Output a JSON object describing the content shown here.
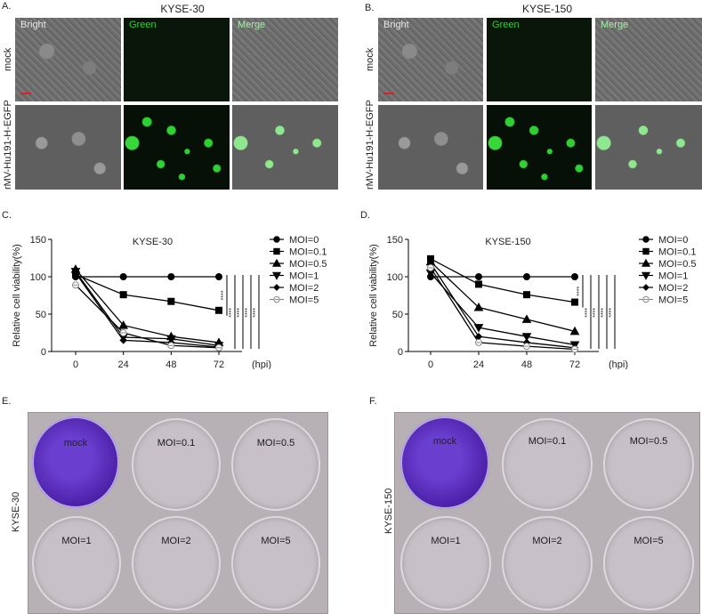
{
  "panels": {
    "A": {
      "letter": "A.",
      "title": "KYSE-30"
    },
    "B": {
      "letter": "B.",
      "title": "KYSE-150"
    },
    "C": {
      "letter": "C."
    },
    "D": {
      "letter": "D."
    },
    "E": {
      "letter": "E.",
      "side_label": "KYSE-30"
    },
    "F": {
      "letter": "F.",
      "side_label": "KYSE-150"
    }
  },
  "micrograph": {
    "columns": [
      "Bright",
      "Green",
      "Merge"
    ],
    "rows": [
      "mock",
      "rMV-Hu191-H-EGFP"
    ],
    "label_colors": {
      "Bright": "#e8e8e8",
      "Green": "#2fcf32",
      "Merge": "#a8f0a8"
    },
    "scalebar_color": "#e02020"
  },
  "plate": {
    "wells": [
      "mock",
      "MOI=0.1",
      "MOI=0.5",
      "MOI=1",
      "MOI=2",
      "MOI=5"
    ],
    "stain_color": "#4b1fa6"
  },
  "chart_data": [
    {
      "type": "line",
      "title": "KYSE-30",
      "xlabel": "(hpi)",
      "ylabel": "Relative cell viability(%)",
      "x": [
        0,
        24,
        48,
        72
      ],
      "x_ticks": [
        "0",
        "24",
        "48",
        "72"
      ],
      "y_ticks": [
        "0",
        "50",
        "100",
        "150"
      ],
      "ylim": [
        0,
        150
      ],
      "grid": false,
      "legend_position": "right",
      "series": [
        {
          "name": "MOI=0",
          "marker": "circle",
          "values": [
            100,
            100,
            100,
            100
          ]
        },
        {
          "name": "MOI=0.1",
          "marker": "square",
          "values": [
            103,
            76,
            67,
            55
          ]
        },
        {
          "name": "MOI=0.5",
          "marker": "triangle-up",
          "values": [
            110,
            35,
            20,
            12
          ]
        },
        {
          "name": "MOI=1",
          "marker": "triangle-down",
          "values": [
            107,
            19,
            17,
            8
          ]
        },
        {
          "name": "MOI=2",
          "marker": "diamond",
          "values": [
            105,
            15,
            12,
            6
          ]
        },
        {
          "name": "MOI=5",
          "marker": "open-circle",
          "values": [
            89,
            25,
            8,
            5
          ]
        }
      ],
      "significance": [
        "****",
        "****",
        "****",
        "****",
        "****"
      ]
    },
    {
      "type": "line",
      "title": "KYSE-150",
      "xlabel": "(hpi)",
      "ylabel": "Relative cell viability(%)",
      "x": [
        0,
        24,
        48,
        72
      ],
      "x_ticks": [
        "0",
        "24",
        "48",
        "72"
      ],
      "y_ticks": [
        "0",
        "50",
        "100",
        "150"
      ],
      "ylim": [
        0,
        150
      ],
      "grid": false,
      "legend_position": "right",
      "series": [
        {
          "name": "MOI=0",
          "marker": "circle",
          "values": [
            100,
            100,
            100,
            100
          ]
        },
        {
          "name": "MOI=0.1",
          "marker": "square",
          "values": [
            124,
            90,
            76,
            66
          ]
        },
        {
          "name": "MOI=0.5",
          "marker": "triangle-up",
          "values": [
            120,
            59,
            43,
            27
          ]
        },
        {
          "name": "MOI=1",
          "marker": "triangle-down",
          "values": [
            105,
            32,
            20,
            9
          ]
        },
        {
          "name": "MOI=2",
          "marker": "diamond",
          "values": [
            118,
            20,
            12,
            5
          ]
        },
        {
          "name": "MOI=5",
          "marker": "open-circle",
          "values": [
            112,
            12,
            7,
            3
          ]
        }
      ],
      "significance": [
        "****",
        "****",
        "****",
        "****",
        "****"
      ]
    }
  ]
}
